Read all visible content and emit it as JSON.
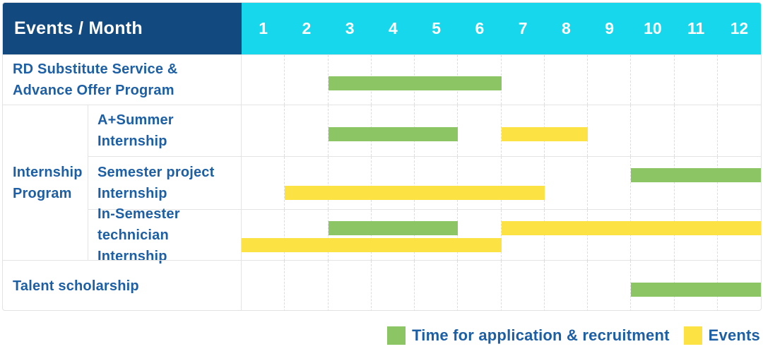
{
  "header": {
    "title": "Events / Month",
    "months": [
      "1",
      "2",
      "3",
      "4",
      "5",
      "6",
      "7",
      "8",
      "9",
      "10",
      "11",
      "12"
    ]
  },
  "rows": {
    "rd": {
      "label": "RD Substitute Service & Advance Offer Program",
      "bars": [
        {
          "color": "green",
          "start": 3,
          "end": 6,
          "lane": "center"
        }
      ]
    },
    "internship": {
      "label": "Internship Program",
      "subrows": [
        {
          "label": "A+Summer Internship",
          "bars": [
            {
              "color": "green",
              "start": 3,
              "end": 5,
              "lane": "center"
            },
            {
              "color": "yellow",
              "start": 7,
              "end": 8,
              "lane": "center"
            }
          ]
        },
        {
          "label": "Semester project Internship",
          "bars": [
            {
              "color": "green",
              "start": 10,
              "end": 12,
              "lane": "upper"
            },
            {
              "color": "yellow",
              "start": 2,
              "end": 7,
              "lane": "lower"
            }
          ]
        },
        {
          "label": "In-Semester technician Internship",
          "bars": [
            {
              "color": "green",
              "start": 3,
              "end": 5,
              "lane": "upper"
            },
            {
              "color": "yellow",
              "start": 7,
              "end": 12,
              "lane": "upper"
            },
            {
              "color": "yellow",
              "start": 1,
              "end": 6,
              "lane": "lower"
            }
          ]
        }
      ]
    },
    "talent": {
      "label": "Talent scholarship",
      "bars": [
        {
          "color": "green",
          "start": 10,
          "end": 12,
          "lane": "center"
        }
      ]
    }
  },
  "legend": {
    "items": [
      {
        "label": "Time for application & recruitment",
        "color": "green"
      },
      {
        "label": "Events",
        "color": "yellow"
      }
    ]
  },
  "colors": {
    "navy": "#12497E",
    "cyan": "#16D7EB",
    "green": "#8BC564",
    "yellow": "#FDE244",
    "label_blue": "#1D5FA5",
    "grid_line": "#E4E4E4"
  },
  "chart_data": {
    "type": "bar",
    "variant": "gantt",
    "title": "Events / Month",
    "x_axis": {
      "label": "Month",
      "ticks": [
        1,
        2,
        3,
        4,
        5,
        6,
        7,
        8,
        9,
        10,
        11,
        12
      ],
      "range": [
        1,
        12
      ]
    },
    "grid": true,
    "legend_position": "bottom-right",
    "series_legend": [
      {
        "name": "Time for application & recruitment",
        "color": "#8BC564"
      },
      {
        "name": "Events",
        "color": "#FDE244"
      }
    ],
    "rows": [
      {
        "group": null,
        "label": "RD Substitute Service & Advance Offer Program",
        "bars": [
          {
            "series": "Time for application & recruitment",
            "start_month": 3,
            "end_month": 6
          }
        ]
      },
      {
        "group": "Internship Program",
        "label": "A+Summer Internship",
        "bars": [
          {
            "series": "Time for application & recruitment",
            "start_month": 3,
            "end_month": 5
          },
          {
            "series": "Events",
            "start_month": 7,
            "end_month": 8
          }
        ]
      },
      {
        "group": "Internship Program",
        "label": "Semester project Internship",
        "bars": [
          {
            "series": "Time for application & recruitment",
            "start_month": 10,
            "end_month": 12
          },
          {
            "series": "Events",
            "start_month": 2,
            "end_month": 7
          }
        ]
      },
      {
        "group": "Internship Program",
        "label": "In-Semester technician Internship",
        "bars": [
          {
            "series": "Time for application & recruitment",
            "start_month": 3,
            "end_month": 5
          },
          {
            "series": "Events",
            "start_month": 7,
            "end_month": 12
          },
          {
            "series": "Events",
            "start_month": 1,
            "end_month": 6
          }
        ]
      },
      {
        "group": null,
        "label": "Talent scholarship",
        "bars": [
          {
            "series": "Time for application & recruitment",
            "start_month": 10,
            "end_month": 12
          }
        ]
      }
    ]
  }
}
